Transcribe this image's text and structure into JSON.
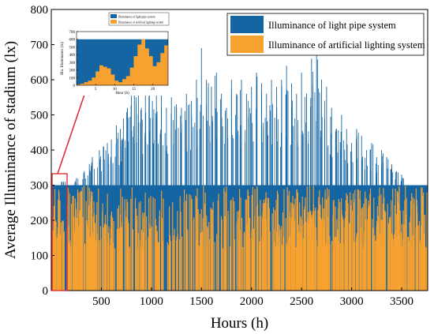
{
  "chart_data": [
    {
      "type": "area",
      "ylabel": "Average Illuminance of stadium (lx)",
      "xlabel": "Hours (h)",
      "xlim": [
        0,
        3760
      ],
      "ylim": [
        0,
        800
      ],
      "xticks": [
        500,
        1000,
        1500,
        2000,
        2500,
        3000,
        3500
      ],
      "xtick_labels": [
        "500",
        "1000",
        "1500",
        "2000",
        "2500",
        "3000",
        "3500"
      ],
      "yticks": [
        0,
        100,
        200,
        300,
        400,
        500,
        600,
        700,
        800
      ],
      "ytick_labels": [
        "0",
        "100",
        "200",
        "300",
        "400",
        "500",
        "600",
        "700",
        "800"
      ],
      "legend_position": "top-right",
      "grid": false,
      "target_illuminance": 300,
      "series": [
        {
          "name": "Illuminance of light pipe system",
          "color": "#1565a3",
          "description_values": "hourly illuminance; fills up to 300 lx baseline with frequent spikes",
          "peak_hours": [
            120,
            250,
            330,
            380,
            410,
            480,
            520,
            560,
            600,
            650,
            690,
            720,
            760,
            800,
            830,
            870,
            900,
            940,
            980,
            1010,
            1050,
            1100,
            1150,
            1200,
            1250,
            1300,
            1350,
            1400,
            1450,
            1500,
            1550,
            1600,
            1650,
            1700,
            1750,
            1800,
            1850,
            1900,
            1950,
            2000,
            2050,
            2100,
            2150,
            2200,
            2250,
            2300,
            2350,
            2400,
            2450,
            2500,
            2550,
            2600,
            2650,
            2700,
            2750,
            2800,
            2850,
            2900,
            2950,
            3000,
            3050,
            3100,
            3150,
            3200,
            3250,
            3300,
            3350,
            3400,
            3450,
            3500
          ],
          "peak_values": [
            310,
            320,
            340,
            360,
            380,
            400,
            410,
            420,
            430,
            470,
            460,
            490,
            520,
            560,
            600,
            560,
            520,
            580,
            570,
            540,
            600,
            560,
            520,
            550,
            530,
            520,
            560,
            540,
            600,
            690,
            600,
            580,
            620,
            560,
            520,
            600,
            560,
            600,
            560,
            580,
            620,
            590,
            560,
            600,
            580,
            600,
            640,
            590,
            560,
            620,
            560,
            660,
            700,
            600,
            580,
            520,
            460,
            500,
            460,
            420,
            460,
            440,
            400,
            420,
            380,
            400,
            380,
            360,
            340,
            330
          ]
        },
        {
          "name": "Illuminance of artificial lighting system",
          "color": "#f7a230",
          "description_values": "supplementary artificial lighting filling the gap to 300 lx"
        }
      ]
    },
    {
      "type": "area",
      "title_box": "inset",
      "xlabel": "Hour (h)",
      "ylabel": "Illu. Illuminance (lx)",
      "xlim": [
        0,
        24
      ],
      "ylim": [
        0,
        700
      ],
      "xticks": [
        5,
        10,
        15,
        20
      ],
      "xtick_labels": [
        "5",
        "10",
        "15",
        "20"
      ],
      "yticks": [
        0,
        100,
        200,
        300,
        400,
        500,
        600,
        700
      ],
      "ytick_labels": [
        "0",
        "100",
        "200",
        "300",
        "400",
        "500",
        "600",
        "700"
      ],
      "legend_position": "top",
      "series": [
        {
          "name": "Illuminance of light pipe system",
          "color": "#1565a3",
          "total": 600,
          "x": [
            0,
            1,
            2,
            3,
            4,
            5,
            6,
            7,
            8,
            9,
            10,
            11,
            12,
            13,
            14,
            15,
            16,
            17,
            18,
            19,
            20,
            21,
            22,
            23,
            24
          ],
          "values": [
            600,
            600,
            600,
            600,
            600,
            600,
            600,
            600,
            600,
            600,
            600,
            600,
            600,
            600,
            600,
            600,
            600,
            600,
            600,
            600,
            600,
            600,
            600,
            600,
            600
          ]
        },
        {
          "name": "Illuminance of artificial lighting system",
          "color": "#f7a230",
          "x": [
            0,
            1,
            2,
            3,
            4,
            5,
            6,
            7,
            8,
            9,
            10,
            11,
            12,
            13,
            14,
            15,
            16,
            17,
            18,
            19,
            20,
            21,
            22,
            23,
            24
          ],
          "values": [
            10,
            20,
            40,
            60,
            100,
            180,
            260,
            240,
            220,
            140,
            60,
            40,
            80,
            120,
            230,
            380,
            530,
            600,
            480,
            380,
            250,
            300,
            420,
            520,
            560
          ]
        }
      ]
    }
  ]
}
